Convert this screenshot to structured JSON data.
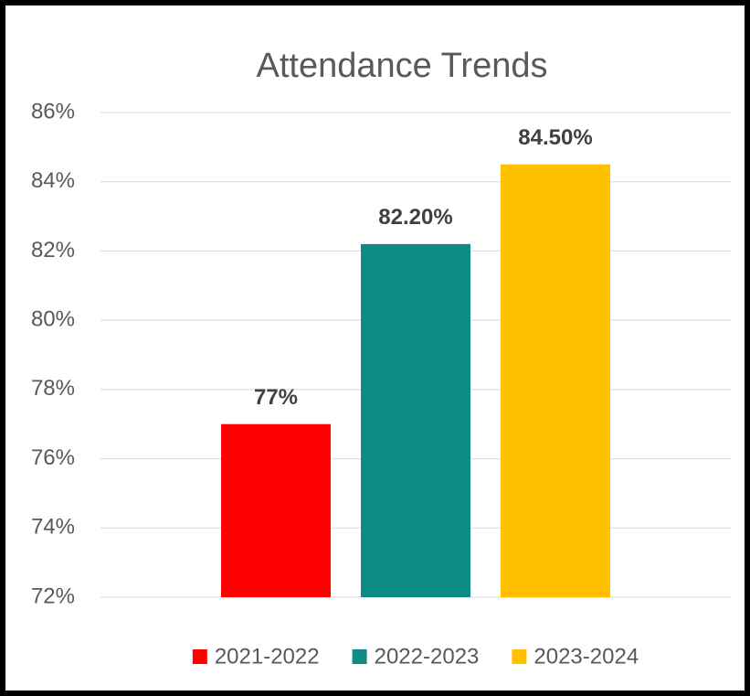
{
  "chart_data": {
    "type": "bar",
    "title": "Attendance Trends",
    "categories": [
      null
    ],
    "series": [
      {
        "name": "2021-2022",
        "color": "#ff0000",
        "values": [
          77
        ],
        "value_labels": [
          "77%"
        ]
      },
      {
        "name": "2022-2023",
        "color": "#0e8a87",
        "values": [
          82.2
        ],
        "value_labels": [
          "82.20%"
        ]
      },
      {
        "name": "2023-2024",
        "color": "#ffc000",
        "values": [
          84.5
        ],
        "value_labels": [
          "84.50%"
        ]
      }
    ],
    "ylim": [
      72,
      86
    ],
    "yticks": [
      {
        "value": 72,
        "label": "72%"
      },
      {
        "value": 74,
        "label": "74%"
      },
      {
        "value": 76,
        "label": "76%"
      },
      {
        "value": 78,
        "label": "78%"
      },
      {
        "value": 80,
        "label": "80%"
      },
      {
        "value": 82,
        "label": "82%"
      },
      {
        "value": 84,
        "label": "84%"
      },
      {
        "value": 86,
        "label": "86%"
      }
    ],
    "grid": true,
    "legend": "bottom"
  }
}
